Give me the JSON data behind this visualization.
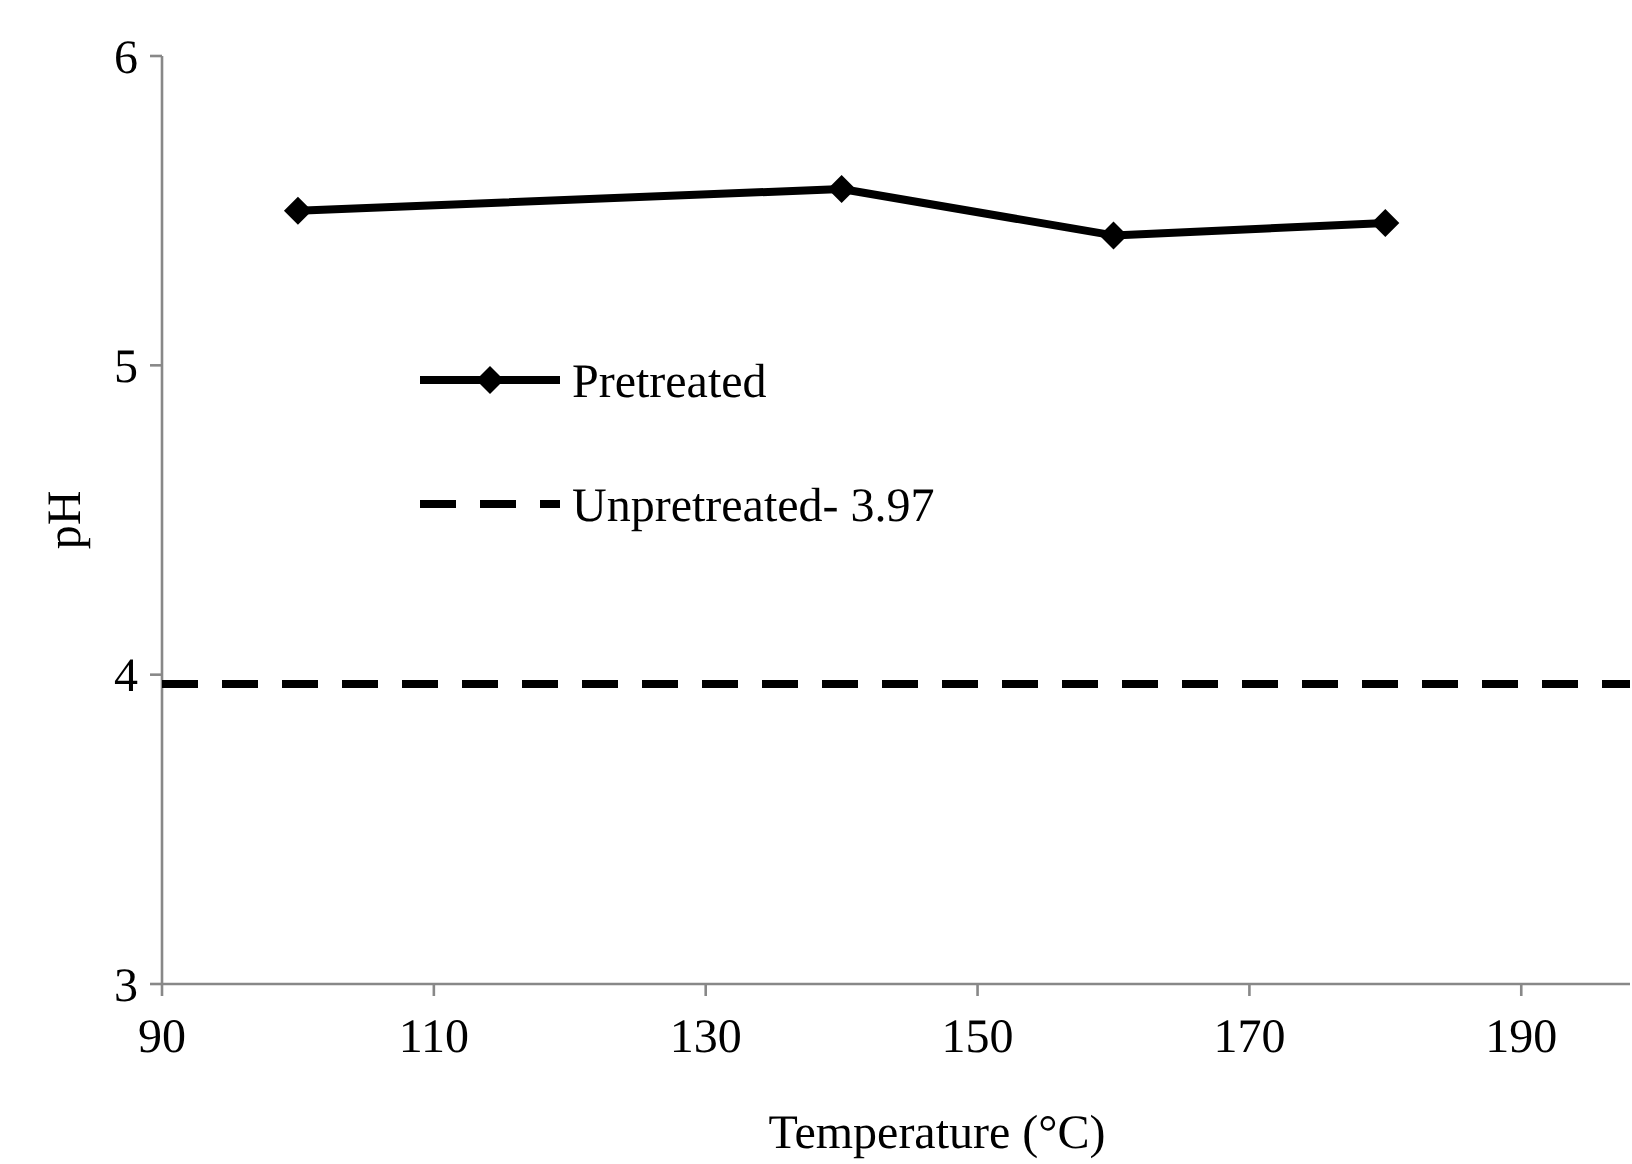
{
  "chart_data": {
    "type": "line",
    "xlabel": "Temperature (°C)",
    "ylabel": "pH",
    "x": [
      100,
      140,
      160,
      180
    ],
    "series": [
      {
        "name": "Pretreated",
        "color": "#000000",
        "values": [
          5.5,
          5.57,
          5.42,
          5.46
        ]
      }
    ],
    "xlim": [
      90,
      198
    ],
    "xticks": [
      90,
      110,
      130,
      150,
      170,
      190
    ],
    "ylim": [
      3,
      6
    ],
    "yticks": [
      3,
      4,
      5,
      6
    ],
    "ref_lines": [
      {
        "axis": "y",
        "value": 3.97,
        "label": "Unpretreated- 3.97",
        "color": "#000000",
        "line_style": "dashed"
      }
    ],
    "marker": "diamond",
    "line_style": "solid",
    "grid": false,
    "legend": "left"
  }
}
